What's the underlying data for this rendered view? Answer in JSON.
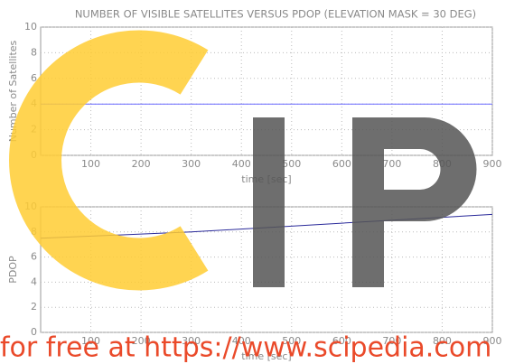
{
  "chart_data": [
    {
      "type": "line",
      "title": "NUMBER OF VISIBLE SATELLITES VERSUS PDOP (ELEVATION MASK = 30 DEG)",
      "y_label": "Number of Satellites",
      "x_label": "time [sec]",
      "xlim": [
        0,
        900
      ],
      "xticks": [
        100,
        200,
        300,
        400,
        500,
        600,
        700,
        800,
        900
      ],
      "ylim": [
        0,
        10
      ],
      "yticks": [
        0,
        2,
        4,
        6,
        8,
        10
      ],
      "grid": true,
      "series": [
        {
          "color": "#6b6bff",
          "x": [
            0,
            900
          ],
          "values": [
            4,
            4
          ]
        }
      ]
    },
    {
      "type": "line",
      "y_label": "PDOP",
      "x_label": "time [sec]",
      "xlim": [
        0,
        900
      ],
      "xticks": [
        100,
        200,
        300,
        400,
        500,
        600,
        700,
        800,
        900
      ],
      "ylim": [
        0,
        10
      ],
      "yticks": [
        0,
        2,
        4,
        6,
        8,
        10
      ],
      "grid": true,
      "series": [
        {
          "color": "#2a2a9a",
          "x": [
            0,
            300,
            600,
            900
          ],
          "values": [
            7.5,
            8.0,
            8.7,
            9.4
          ]
        }
      ]
    }
  ],
  "watermark": "for free at https://www.scipedia.com"
}
